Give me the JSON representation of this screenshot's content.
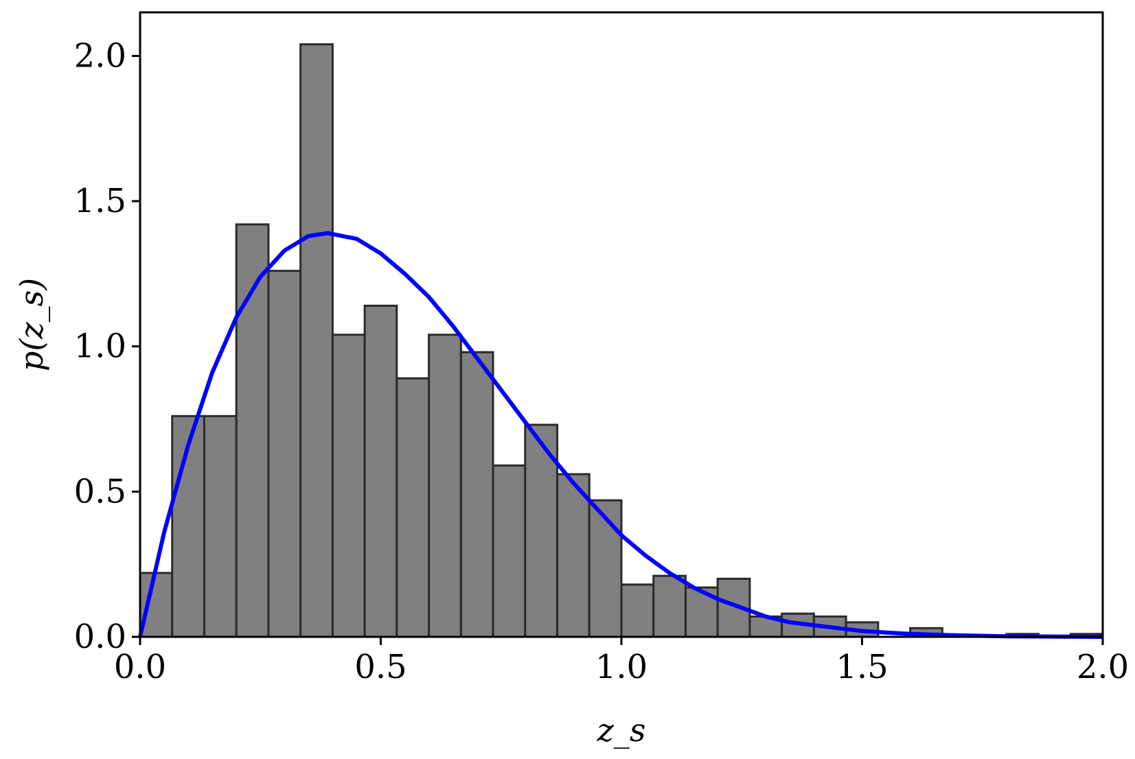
{
  "chart_data": {
    "type": "histogram",
    "xlabel": "z_s",
    "ylabel": "p(z_s)",
    "xlim": [
      0.0,
      2.0
    ],
    "ylim": [
      0.0,
      2.15
    ],
    "x_ticks": [
      "0.0",
      "0.5",
      "1.0",
      "1.5",
      "2.0"
    ],
    "y_ticks": [
      "0.0",
      "0.5",
      "1.0",
      "1.5",
      "2.0"
    ],
    "x_tick_values": [
      0.0,
      0.5,
      1.0,
      1.5,
      2.0
    ],
    "y_tick_values": [
      0.0,
      0.5,
      1.0,
      1.5,
      2.0
    ],
    "grid": false,
    "bars": {
      "edges": [
        0.0,
        0.0667,
        0.1333,
        0.2,
        0.2667,
        0.3333,
        0.4,
        0.4667,
        0.5333,
        0.6,
        0.6667,
        0.7333,
        0.8,
        0.8667,
        0.9333,
        1.0,
        1.0667,
        1.1333,
        1.2,
        1.2667,
        1.3333,
        1.4,
        1.4667,
        1.5333,
        1.6,
        1.6667,
        1.7333,
        1.8,
        1.8667,
        1.9333,
        2.0
      ],
      "values": [
        0.22,
        0.76,
        0.76,
        1.42,
        1.26,
        2.04,
        1.04,
        1.14,
        0.89,
        1.04,
        0.98,
        0.59,
        0.73,
        0.56,
        0.47,
        0.18,
        0.21,
        0.17,
        0.2,
        0.07,
        0.08,
        0.07,
        0.05,
        0.0,
        0.03,
        0.0,
        0.0,
        0.01,
        0.0,
        0.01
      ],
      "color": "#808080",
      "edgecolor": "#2a2a2a"
    },
    "curve": {
      "name": "",
      "color": "#0000ff",
      "x": [
        0.0,
        0.05,
        0.1,
        0.15,
        0.2,
        0.25,
        0.3,
        0.35,
        0.39,
        0.45,
        0.5,
        0.55,
        0.6,
        0.65,
        0.7,
        0.75,
        0.8,
        0.85,
        0.9,
        0.95,
        1.0,
        1.05,
        1.1,
        1.15,
        1.2,
        1.25,
        1.3,
        1.35,
        1.4,
        1.45,
        1.5,
        1.55,
        1.6,
        1.7,
        1.8,
        1.9,
        2.0
      ],
      "y": [
        0.0,
        0.36,
        0.66,
        0.91,
        1.1,
        1.24,
        1.33,
        1.38,
        1.39,
        1.37,
        1.32,
        1.25,
        1.17,
        1.07,
        0.96,
        0.85,
        0.74,
        0.63,
        0.53,
        0.44,
        0.35,
        0.28,
        0.22,
        0.17,
        0.13,
        0.1,
        0.07,
        0.05,
        0.04,
        0.03,
        0.02,
        0.015,
        0.01,
        0.005,
        0.002,
        0.001,
        0.0
      ]
    }
  }
}
